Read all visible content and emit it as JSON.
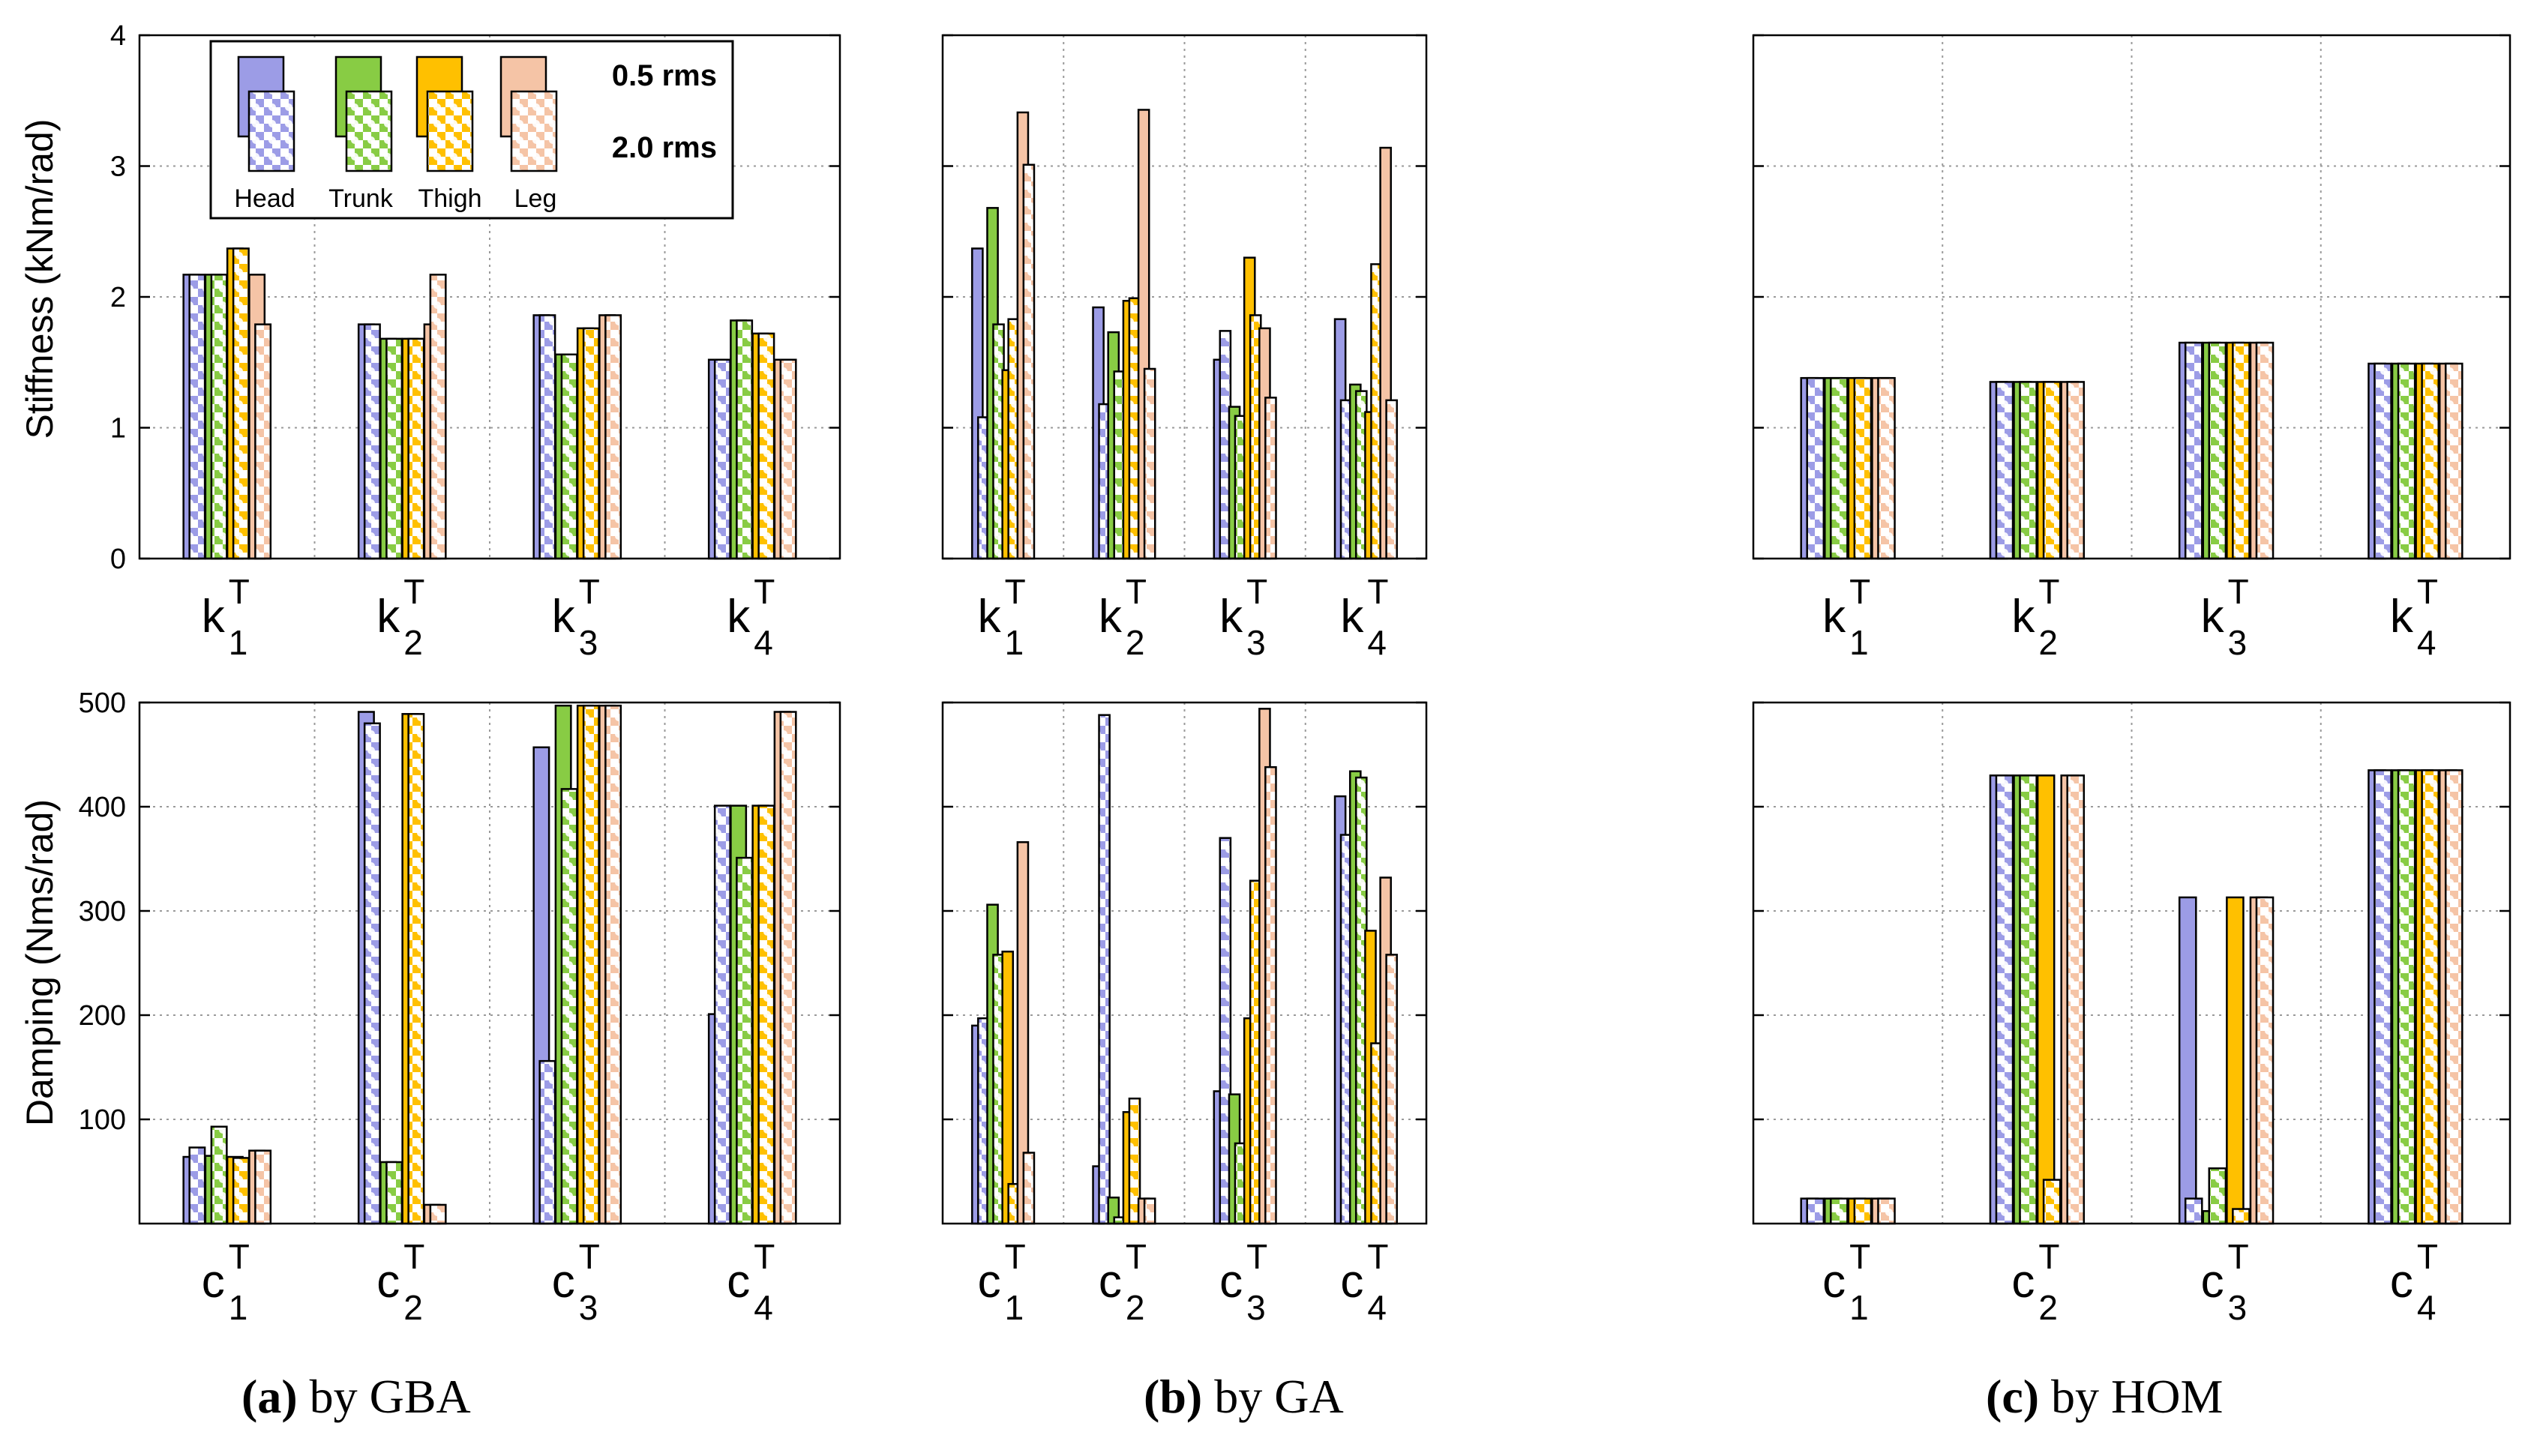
{
  "colors": {
    "head": "#9c9ce6",
    "trunk": "#88cc44",
    "thigh": "#ffc000",
    "leg": "#f5c4a6",
    "grid": "#9a9a9a"
  },
  "legend": {
    "labels": [
      "Head",
      "Trunk",
      "Thigh",
      "Leg"
    ],
    "rms_low": "0.5 rms",
    "rms_high": "2.0 rms"
  },
  "captions": [
    {
      "letter": "(a)",
      "text": " by GBA"
    },
    {
      "letter": "(b)",
      "text": " by GA"
    },
    {
      "letter": "(c)",
      "text": " by HOM"
    }
  ],
  "axes": {
    "stiffness_ylabel": "Stiffness (kNm/rad)",
    "damping_ylabel": "Damping (Nms/rad)",
    "stiffness_ticks": [
      "0",
      "1",
      "2",
      "3",
      "4"
    ],
    "damping_ticks": [
      "100",
      "200",
      "300",
      "400",
      "500"
    ],
    "k_labels": [
      {
        "base": "k",
        "sub": "1",
        "sup": "T"
      },
      {
        "base": "k",
        "sub": "2",
        "sup": "T"
      },
      {
        "base": "k",
        "sub": "3",
        "sup": "T"
      },
      {
        "base": "k",
        "sub": "4",
        "sup": "T"
      }
    ],
    "c_labels": [
      {
        "base": "c",
        "sub": "1",
        "sup": "T"
      },
      {
        "base": "c",
        "sub": "2",
        "sup": "T"
      },
      {
        "base": "c",
        "sub": "3",
        "sup": "T"
      },
      {
        "base": "c",
        "sub": "4",
        "sup": "T"
      }
    ]
  },
  "chart_data": [
    {
      "type": "bar",
      "id": "stiffness-gba",
      "method": "GBA",
      "ylabel": "Stiffness (kNm/rad)",
      "ylim": [
        0,
        4
      ],
      "grid": true,
      "categories": [
        "k1T",
        "k2T",
        "k3T",
        "k4T"
      ],
      "series": [
        {
          "name": "Head",
          "rms05": [
            2.17,
            1.79,
            1.86,
            1.52
          ],
          "rms20": [
            2.17,
            1.79,
            1.86,
            1.52
          ]
        },
        {
          "name": "Trunk",
          "rms05": [
            2.17,
            1.68,
            1.56,
            1.82
          ],
          "rms20": [
            2.17,
            1.68,
            1.56,
            1.82
          ]
        },
        {
          "name": "Thigh",
          "rms05": [
            2.37,
            1.68,
            1.76,
            1.72
          ],
          "rms20": [
            2.37,
            1.68,
            1.76,
            1.72
          ]
        },
        {
          "name": "Leg",
          "rms05": [
            2.17,
            1.79,
            1.86,
            1.52
          ],
          "rms20": [
            1.79,
            2.17,
            1.86,
            1.52
          ]
        }
      ]
    },
    {
      "type": "bar",
      "id": "stiffness-ga",
      "method": "GA",
      "ylabel": "Stiffness (kNm/rad)",
      "ylim": [
        0,
        4
      ],
      "grid": true,
      "categories": [
        "k1T",
        "k2T",
        "k3T",
        "k4T"
      ],
      "series": [
        {
          "name": "Head",
          "rms05": [
            2.37,
            1.92,
            1.52,
            1.83
          ],
          "rms20": [
            1.08,
            1.18,
            1.74,
            1.21
          ]
        },
        {
          "name": "Trunk",
          "rms05": [
            2.68,
            1.73,
            1.16,
            1.33
          ],
          "rms20": [
            1.79,
            1.43,
            1.09,
            1.28
          ]
        },
        {
          "name": "Thigh",
          "rms05": [
            1.44,
            1.97,
            2.3,
            1.12
          ],
          "rms20": [
            1.83,
            1.99,
            1.86,
            2.25
          ]
        },
        {
          "name": "Leg",
          "rms05": [
            3.41,
            3.43,
            1.76,
            3.14
          ],
          "rms20": [
            3.01,
            1.45,
            1.23,
            1.21
          ]
        }
      ]
    },
    {
      "type": "bar",
      "id": "stiffness-hom",
      "method": "HOM",
      "ylabel": "Stiffness (kNm/rad)",
      "ylim": [
        0,
        4
      ],
      "grid": true,
      "categories": [
        "k1T",
        "k2T",
        "k3T",
        "k4T"
      ],
      "series": [
        {
          "name": "Head",
          "rms05": [
            1.38,
            1.35,
            1.65,
            1.49
          ],
          "rms20": [
            1.38,
            1.35,
            1.65,
            1.49
          ]
        },
        {
          "name": "Trunk",
          "rms05": [
            1.38,
            1.35,
            1.65,
            1.49
          ],
          "rms20": [
            1.38,
            1.35,
            1.65,
            1.49
          ]
        },
        {
          "name": "Thigh",
          "rms05": [
            1.38,
            1.35,
            1.65,
            1.49
          ],
          "rms20": [
            1.38,
            1.35,
            1.65,
            1.49
          ]
        },
        {
          "name": "Leg",
          "rms05": [
            1.38,
            1.35,
            1.65,
            1.49
          ],
          "rms20": [
            1.38,
            1.35,
            1.65,
            1.49
          ]
        }
      ]
    },
    {
      "type": "bar",
      "id": "damping-gba",
      "method": "GBA",
      "ylabel": "Damping (Nms/rad)",
      "ylim": [
        0,
        500
      ],
      "grid": true,
      "categories": [
        "c1T",
        "c2T",
        "c3T",
        "c4T"
      ],
      "series": [
        {
          "name": "Head",
          "rms05": [
            64,
            491,
            457,
            201
          ],
          "rms20": [
            73,
            480,
            156,
            401
          ]
        },
        {
          "name": "Trunk",
          "rms05": [
            65,
            59,
            497,
            401
          ],
          "rms20": [
            93,
            59,
            417,
            351
          ]
        },
        {
          "name": "Thigh",
          "rms05": [
            64,
            489,
            497,
            401
          ],
          "rms20": [
            63,
            489,
            497,
            401
          ]
        },
        {
          "name": "Leg",
          "rms05": [
            70,
            18,
            497,
            491
          ],
          "rms20": [
            70,
            18,
            497,
            491
          ]
        }
      ]
    },
    {
      "type": "bar",
      "id": "damping-ga",
      "method": "GA",
      "ylabel": "Damping (Nms/rad)",
      "ylim": [
        0,
        500
      ],
      "grid": true,
      "categories": [
        "c1T",
        "c2T",
        "c3T",
        "c4T"
      ],
      "series": [
        {
          "name": "Head",
          "rms05": [
            190,
            55,
            127,
            410
          ],
          "rms20": [
            197,
            488,
            370,
            373
          ]
        },
        {
          "name": "Trunk",
          "rms05": [
            306,
            25,
            124,
            434
          ],
          "rms20": [
            258,
            6,
            77,
            428
          ]
        },
        {
          "name": "Thigh",
          "rms05": [
            261,
            107,
            197,
            281
          ],
          "rms20": [
            38,
            120,
            329,
            173
          ]
        },
        {
          "name": "Leg",
          "rms05": [
            366,
            24,
            494,
            332
          ],
          "rms20": [
            68,
            24,
            438,
            258
          ]
        }
      ]
    },
    {
      "type": "bar",
      "id": "damping-hom",
      "method": "HOM",
      "ylabel": "Damping (Nms/rad)",
      "ylim": [
        0,
        500
      ],
      "grid": true,
      "categories": [
        "c1T",
        "c2T",
        "c3T",
        "c4T"
      ],
      "series": [
        {
          "name": "Head",
          "rms05": [
            24,
            430,
            313,
            435
          ],
          "rms20": [
            24,
            430,
            24,
            435
          ]
        },
        {
          "name": "Trunk",
          "rms05": [
            24,
            430,
            12,
            435
          ],
          "rms20": [
            24,
            430,
            53,
            435
          ]
        },
        {
          "name": "Thigh",
          "rms05": [
            24,
            430,
            313,
            435
          ],
          "rms20": [
            24,
            42,
            14,
            435
          ]
        },
        {
          "name": "Leg",
          "rms05": [
            24,
            430,
            313,
            435
          ],
          "rms20": [
            24,
            430,
            313,
            435
          ]
        }
      ]
    }
  ]
}
